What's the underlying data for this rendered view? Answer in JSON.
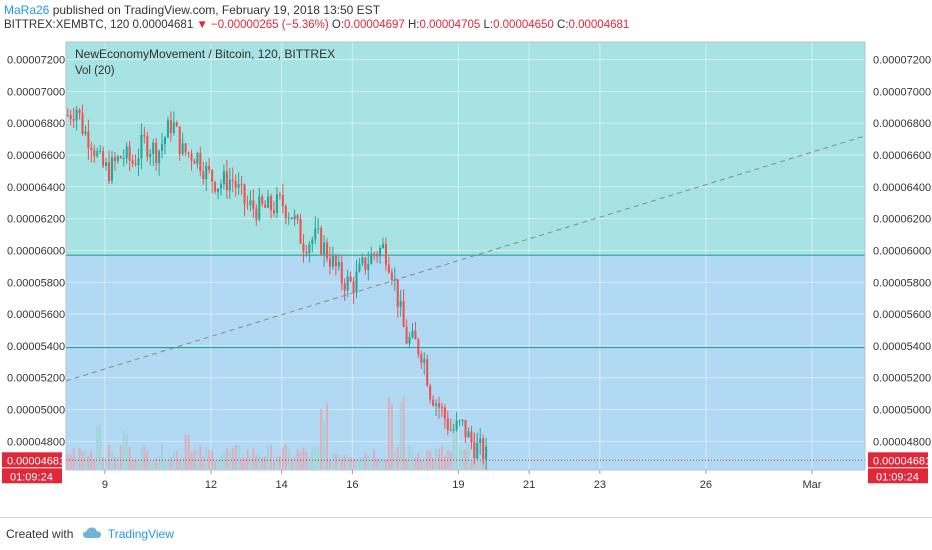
{
  "header": {
    "author": "MaRa26",
    "published_text": "published on TradingView.com, February 19, 2018 13:50 EST",
    "symbol": "BITTREX:XEMBTC, 120",
    "last_price": "0.00004681",
    "change": "−0.00000265 (−5.36%)",
    "o_label": "O:",
    "o_value": "0.00004697",
    "h_label": "H:",
    "h_value": "0.00004705",
    "l_label": "L:",
    "l_value": "0.00004650",
    "c_label": "C:",
    "c_value": "0.00004681"
  },
  "footer": {
    "created_with": "Created with",
    "brand": "TradingView"
  },
  "colors": {
    "up": "#26a69a",
    "down": "#ef5350",
    "zone_upper": "#a8e3e4",
    "zone_lower": "#b2d9f3",
    "hline": "#26a69a",
    "trendline": "#7f8c8d",
    "price_tag": "#e0283a"
  },
  "chart_data": {
    "type": "candlestick",
    "title": "NewEconomyMovement / Bitcoin, 120, BITTREX",
    "indicator_label": "Vol (20)",
    "y_axis_ticks": [
      "0.00004800",
      "0.00005000",
      "0.00005200",
      "0.00005400",
      "0.00005600",
      "0.00005800",
      "0.00006000",
      "0.00006200",
      "0.00006400",
      "0.00006600",
      "0.00006800",
      "0.00007000",
      "0.00007200"
    ],
    "y_range": [
      4.62e-05,
      7.31e-05
    ],
    "x_axis_ticks": [
      {
        "label": "9",
        "day": 9
      },
      {
        "label": "12",
        "day": 12
      },
      {
        "label": "14",
        "day": 14
      },
      {
        "label": "16",
        "day": 16
      },
      {
        "label": "19",
        "day": 19
      },
      {
        "label": "21",
        "day": 21
      },
      {
        "label": "23",
        "day": 23
      },
      {
        "label": "26",
        "day": 26
      },
      {
        "label": "Mar",
        "day": 29
      }
    ],
    "x_range_days": [
      7.9,
      30.5
    ],
    "last_price_tag": "0.00004681",
    "countdown_tag": "01:09:24",
    "last_price_value": 4.681e-05,
    "horizontal_lines": [
      5.97e-05,
      5.39e-05
    ],
    "shaded_zones": [
      {
        "from": 5.97e-05,
        "to": 7.31e-05,
        "color": "#a8e3e4"
      },
      {
        "from": 4.62e-05,
        "to": 5.97e-05,
        "color": "#b2d9f3"
      }
    ],
    "trendline": {
      "from": {
        "day": 7.9,
        "price": 5.18e-05
      },
      "to": {
        "day": 30.5,
        "price": 6.72e-05
      }
    },
    "anchor_closes": [
      [
        7.95,
        6.85e-05
      ],
      [
        8.2,
        6.9e-05
      ],
      [
        8.4,
        6.75e-05
      ],
      [
        8.6,
        6.7e-05
      ],
      [
        8.9,
        6.53e-05
      ],
      [
        9.1,
        6.5e-05
      ],
      [
        9.5,
        6.6e-05
      ],
      [
        9.8,
        6.55e-05
      ],
      [
        10.1,
        6.68e-05
      ],
      [
        10.5,
        6.62e-05
      ],
      [
        10.9,
        6.81e-05
      ],
      [
        11.2,
        6.62e-05
      ],
      [
        11.6,
        6.6e-05
      ],
      [
        11.9,
        6.48e-05
      ],
      [
        12.2,
        6.42e-05
      ],
      [
        12.6,
        6.45e-05
      ],
      [
        13.0,
        6.28e-05
      ],
      [
        13.4,
        6.26e-05
      ],
      [
        13.7,
        6.27e-05
      ],
      [
        14.0,
        6.3e-05
      ],
      [
        14.3,
        6.22e-05
      ],
      [
        14.6,
        6.05e-05
      ],
      [
        15.0,
        6.08e-05
      ],
      [
        15.3,
        5.98e-05
      ],
      [
        15.7,
        5.82e-05
      ],
      [
        16.0,
        5.78e-05
      ],
      [
        16.3,
        5.9e-05
      ],
      [
        16.6,
        5.98e-05
      ],
      [
        16.9,
        6.02e-05
      ],
      [
        17.1,
        5.9e-05
      ],
      [
        17.3,
        5.68e-05
      ],
      [
        17.5,
        5.45e-05
      ],
      [
        17.8,
        5.41e-05
      ],
      [
        18.0,
        5.35e-05
      ],
      [
        18.2,
        5.12e-05
      ],
      [
        18.5,
        5e-05
      ],
      [
        18.8,
        4.87e-05
      ],
      [
        19.1,
        4.9e-05
      ],
      [
        19.4,
        4.78e-05
      ],
      [
        19.7,
        4.73e-05
      ],
      [
        19.85,
        4.68e-05
      ]
    ],
    "volume_spikes": [
      [
        8.8,
        0.55
      ],
      [
        9.6,
        0.45
      ],
      [
        11.3,
        0.5
      ],
      [
        15.2,
        0.7
      ],
      [
        17.1,
        0.95
      ],
      [
        17.4,
        0.85
      ],
      [
        18.9,
        0.55
      ],
      [
        19.5,
        0.4
      ]
    ]
  }
}
